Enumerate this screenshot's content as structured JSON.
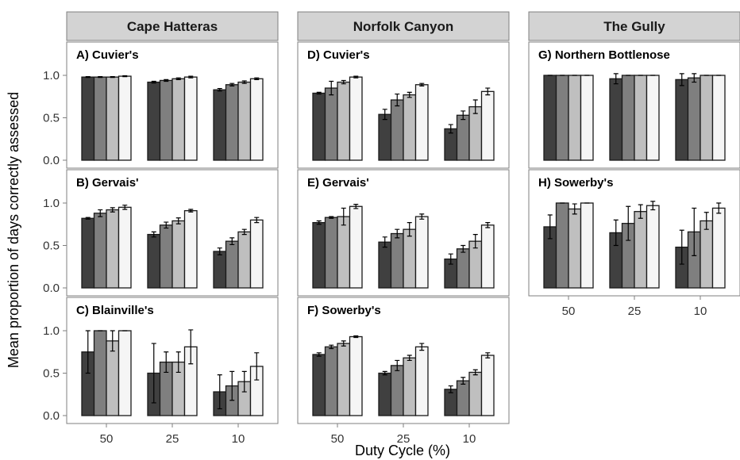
{
  "chart_data": {
    "type": "bar",
    "ylabel": "Mean proportion of days correctly assessed",
    "xlabel": "Duty Cycle (%)",
    "categories": [
      "50",
      "25",
      "10"
    ],
    "ylim": [
      0,
      1.2
    ],
    "yticks": [
      "0.0",
      "0.5",
      "1.0"
    ],
    "grid": false,
    "bar_fills": [
      "#404040",
      "#7f7f7f",
      "#bfbfbf",
      "#f5f5f5"
    ],
    "columns": [
      {
        "strip": "Cape Hatteras"
      },
      {
        "strip": "Norfolk Canyon"
      },
      {
        "strip": "The Gully"
      }
    ],
    "panels": [
      {
        "title": "A) Cuvier's",
        "col": 0,
        "row": 0,
        "values": [
          [
            0.98,
            0.98,
            0.98,
            0.99
          ],
          [
            0.92,
            0.94,
            0.96,
            0.98
          ],
          [
            0.83,
            0.89,
            0.92,
            0.96
          ]
        ],
        "errors": [
          [
            0.005,
            0.005,
            0.005,
            0.005
          ],
          [
            0.01,
            0.01,
            0.01,
            0.01
          ],
          [
            0.015,
            0.015,
            0.015,
            0.01
          ]
        ]
      },
      {
        "title": "B) Gervais'",
        "col": 0,
        "row": 1,
        "values": [
          [
            0.82,
            0.88,
            0.92,
            0.95
          ],
          [
            0.63,
            0.74,
            0.79,
            0.91
          ],
          [
            0.43,
            0.55,
            0.66,
            0.8
          ]
        ],
        "errors": [
          [
            0.01,
            0.04,
            0.025,
            0.025
          ],
          [
            0.03,
            0.035,
            0.035,
            0.015
          ],
          [
            0.04,
            0.04,
            0.03,
            0.03
          ]
        ]
      },
      {
        "title": "C) Blainville's",
        "col": 0,
        "row": 2,
        "values": [
          [
            0.75,
            1.0,
            0.88,
            1.0
          ],
          [
            0.5,
            0.63,
            0.63,
            0.81
          ],
          [
            0.28,
            0.35,
            0.4,
            0.58
          ]
        ],
        "errors": [
          [
            0.25,
            0.0,
            0.12,
            0.0
          ],
          [
            0.35,
            0.12,
            0.12,
            0.2
          ],
          [
            0.2,
            0.17,
            0.12,
            0.16
          ]
        ]
      },
      {
        "title": "D) Cuvier's",
        "col": 1,
        "row": 0,
        "values": [
          [
            0.79,
            0.85,
            0.92,
            0.98
          ],
          [
            0.54,
            0.71,
            0.77,
            0.89
          ],
          [
            0.37,
            0.53,
            0.63,
            0.81
          ]
        ],
        "errors": [
          [
            0.01,
            0.08,
            0.02,
            0.01
          ],
          [
            0.06,
            0.07,
            0.03,
            0.015
          ],
          [
            0.05,
            0.05,
            0.08,
            0.04
          ]
        ]
      },
      {
        "title": "E) Gervais'",
        "col": 1,
        "row": 1,
        "values": [
          [
            0.77,
            0.83,
            0.84,
            0.96
          ],
          [
            0.54,
            0.64,
            0.69,
            0.84
          ],
          [
            0.34,
            0.46,
            0.55,
            0.74
          ]
        ],
        "errors": [
          [
            0.02,
            0.01,
            0.1,
            0.025
          ],
          [
            0.06,
            0.05,
            0.08,
            0.03
          ],
          [
            0.06,
            0.04,
            0.08,
            0.03
          ]
        ]
      },
      {
        "title": "F) Sowerby's",
        "col": 1,
        "row": 2,
        "values": [
          [
            0.72,
            0.81,
            0.85,
            0.93
          ],
          [
            0.5,
            0.59,
            0.68,
            0.81
          ],
          [
            0.31,
            0.41,
            0.51,
            0.71
          ]
        ],
        "errors": [
          [
            0.02,
            0.02,
            0.03,
            0.01
          ],
          [
            0.02,
            0.06,
            0.03,
            0.04
          ],
          [
            0.04,
            0.04,
            0.03,
            0.03
          ]
        ]
      },
      {
        "title": "G) Northern Bottlenose",
        "col": 2,
        "row": 0,
        "values": [
          [
            1.0,
            1.0,
            1.0,
            1.0
          ],
          [
            0.96,
            1.0,
            1.0,
            1.0
          ],
          [
            0.95,
            0.97,
            1.0,
            1.0
          ]
        ],
        "errors": [
          [
            0.0,
            0.0,
            0.0,
            0.0
          ],
          [
            0.06,
            0.0,
            0.0,
            0.0
          ],
          [
            0.07,
            0.05,
            0.0,
            0.0
          ]
        ]
      },
      {
        "title": "H) Sowerby's",
        "col": 2,
        "row": 1,
        "values": [
          [
            0.72,
            1.0,
            0.93,
            1.0
          ],
          [
            0.65,
            0.76,
            0.9,
            0.97
          ],
          [
            0.48,
            0.66,
            0.79,
            0.94
          ]
        ],
        "errors": [
          [
            0.14,
            0.0,
            0.06,
            0.0
          ],
          [
            0.15,
            0.2,
            0.08,
            0.05
          ],
          [
            0.2,
            0.28,
            0.1,
            0.06
          ]
        ]
      }
    ]
  }
}
